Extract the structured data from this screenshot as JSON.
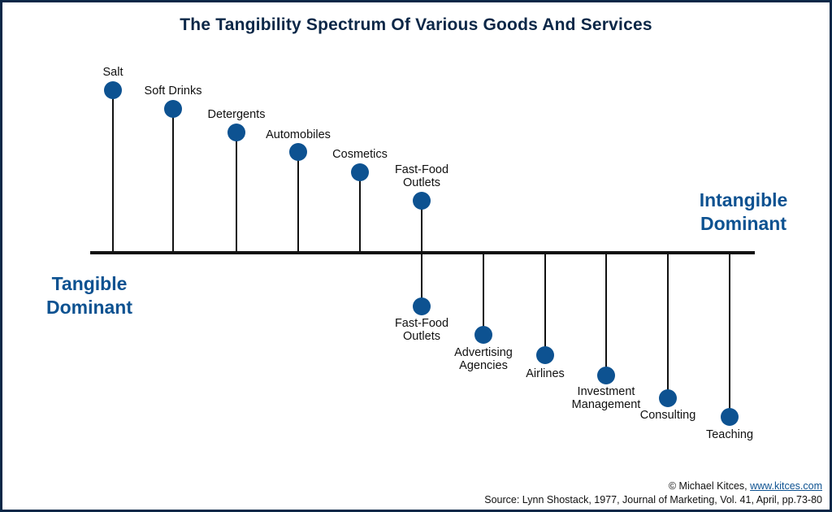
{
  "title": "The Tangibility Spectrum Of Various Goods And Services",
  "axis": {
    "left_label": [
      "Tangible",
      "Dominant"
    ],
    "right_label": [
      "Intangible",
      "Dominant"
    ]
  },
  "colors": {
    "dot": "#0d5291",
    "title": "#0b2747",
    "axis_label": "#0d5291",
    "line": "#111111"
  },
  "tangible_items": [
    {
      "label": [
        "Salt"
      ]
    },
    {
      "label": [
        "Soft Drinks"
      ]
    },
    {
      "label": [
        "Detergents"
      ]
    },
    {
      "label": [
        "Automobiles"
      ]
    },
    {
      "label": [
        "Cosmetics"
      ]
    },
    {
      "label": [
        "Fast-Food",
        "Outlets"
      ]
    }
  ],
  "intangible_items": [
    {
      "label": [
        "Fast-Food",
        "Outlets"
      ]
    },
    {
      "label": [
        "Advertising",
        "Agencies"
      ]
    },
    {
      "label": [
        "Airlines"
      ]
    },
    {
      "label": [
        "Investment",
        "Management"
      ]
    },
    {
      "label": [
        "Consulting"
      ]
    },
    {
      "label": [
        "Teaching"
      ]
    }
  ],
  "footer": {
    "copyright_prefix": "© Michael Kitces, ",
    "link_text": "www.kitces.com",
    "source": "Source: Lynn Shostack, 1977, Journal of Marketing, Vol. 41, April, pp.73-80"
  }
}
